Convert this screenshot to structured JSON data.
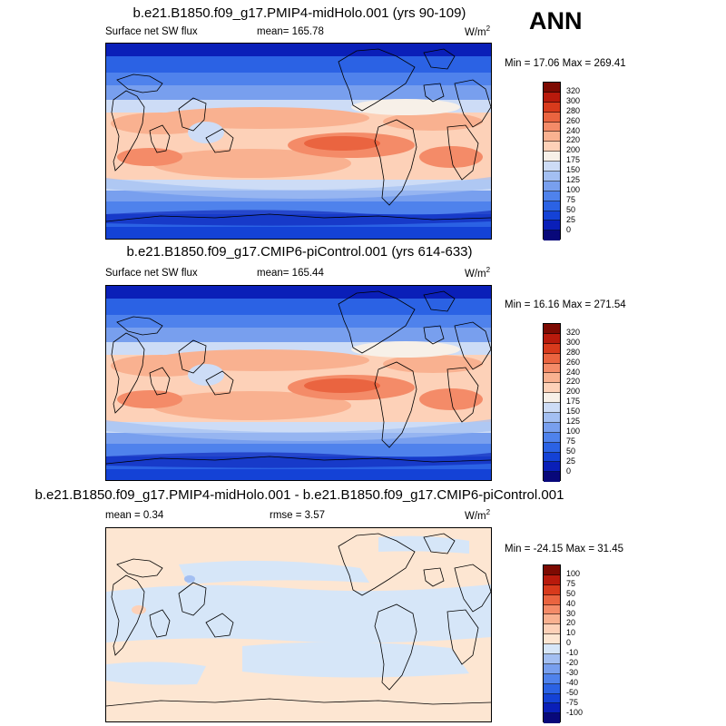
{
  "season": "ANN",
  "panels": [
    {
      "title": "b.e21.B1850.f09_g17.PMIP4-midHolo.001 (yrs 90-109)",
      "left_label": "Surface net SW flux",
      "center_label": "mean= 165.78",
      "units": "W/m",
      "units_sup": "2",
      "minmax": "Min =  17.06 Max = 269.41",
      "kind": "field"
    },
    {
      "title": "b.e21.B1850.f09_g17.CMIP6-piControl.001 (yrs 614-633)",
      "left_label": "Surface net SW flux",
      "center_label": "mean= 165.44",
      "units": "W/m",
      "units_sup": "2",
      "minmax": "Min =  16.16 Max = 271.54",
      "kind": "field"
    },
    {
      "title": "b.e21.B1850.f09_g17.PMIP4-midHolo.001 - b.e21.B1850.f09_g17.CMIP6-piControl.001",
      "left_label": "mean =   0.34",
      "center_label": "rmse =   3.57",
      "units": "W/m",
      "units_sup": "2",
      "minmax": "Min = -24.15 Max =  31.45",
      "kind": "diff"
    }
  ],
  "chart_data": [
    {
      "type": "heatmap",
      "title": "b.e21.B1850.f09_g17.PMIP4-midHolo.001 (yrs 90-109)",
      "variable": "Surface net SW flux",
      "units": "W/m2",
      "mean": 165.78,
      "min": 17.06,
      "max": 269.41,
      "colorbar_levels": [
        0,
        25,
        50,
        75,
        100,
        125,
        150,
        175,
        200,
        220,
        240,
        260,
        280,
        300,
        320
      ],
      "colorbar_colors": [
        "#08087a",
        "#0a1fb8",
        "#1442d6",
        "#2b62e4",
        "#4f82ec",
        "#789fee",
        "#a3bff2",
        "#cddcf6",
        "#f7f0e8",
        "#fdd1b8",
        "#f9b190",
        "#f48b68",
        "#ea6440",
        "#d83a1c",
        "#b81a0c",
        "#7d0a02"
      ]
    },
    {
      "type": "heatmap",
      "title": "b.e21.B1850.f09_g17.CMIP6-piControl.001 (yrs 614-633)",
      "variable": "Surface net SW flux",
      "units": "W/m2",
      "mean": 165.44,
      "min": 16.16,
      "max": 271.54,
      "colorbar_levels": [
        0,
        25,
        50,
        75,
        100,
        125,
        150,
        175,
        200,
        220,
        240,
        260,
        280,
        300,
        320
      ],
      "colorbar_colors": [
        "#08087a",
        "#0a1fb8",
        "#1442d6",
        "#2b62e4",
        "#4f82ec",
        "#789fee",
        "#a3bff2",
        "#cddcf6",
        "#f7f0e8",
        "#fdd1b8",
        "#f9b190",
        "#f48b68",
        "#ea6440",
        "#d83a1c",
        "#b81a0c",
        "#7d0a02"
      ]
    },
    {
      "type": "heatmap",
      "title": "b.e21.B1850.f09_g17.PMIP4-midHolo.001 - b.e21.B1850.f09_g17.CMIP6-piControl.001",
      "units": "W/m2",
      "mean": 0.34,
      "rmse": 3.57,
      "min": -24.15,
      "max": 31.45,
      "colorbar_levels": [
        -100,
        -75,
        -50,
        -40,
        -30,
        -20,
        -10,
        0,
        10,
        20,
        30,
        40,
        50,
        75,
        100
      ],
      "colorbar_colors": [
        "#08087a",
        "#0a1fb8",
        "#1442d6",
        "#2b62e4",
        "#4f82ec",
        "#789fee",
        "#a3bff2",
        "#d6e6f8",
        "#fde6d2",
        "#fdd1b8",
        "#f9b190",
        "#f48b68",
        "#ea6440",
        "#d83a1c",
        "#b81a0c",
        "#7d0a02"
      ]
    }
  ]
}
